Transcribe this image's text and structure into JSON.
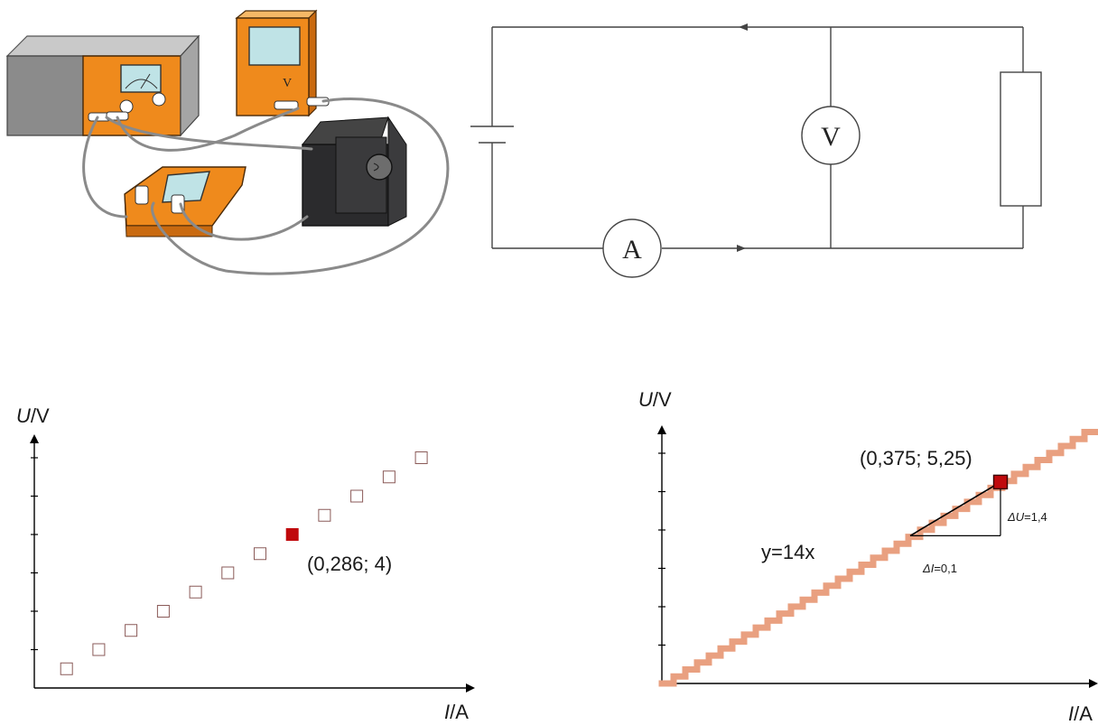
{
  "apparatus": {
    "voltmeter_letter": "V"
  },
  "circuit": {
    "voltmeter_symbol": "V",
    "ammeter_symbol": "A"
  },
  "graph_left": {
    "y_axis_var": "U",
    "y_axis_unit": "/V",
    "x_axis_var": "I",
    "x_axis_unit": "/A",
    "highlight_label": "(0,286; 4)"
  },
  "graph_right": {
    "y_axis_var": "U",
    "y_axis_unit": "/V",
    "x_axis_var": "I",
    "x_axis_unit": "/A",
    "point_label": "(0,375; 5,25)",
    "equation_label": "y=14x",
    "delta_u_symbol": "ΔU",
    "delta_u_value": "=1,4",
    "delta_i_symbol": "ΔI",
    "delta_i_value": "=0,1"
  },
  "colors": {
    "device_orange": "#ef8a1c",
    "meter_screen": "#bfe3e6",
    "highlight_red": "#c0090c",
    "trend_pink": "#e9a080",
    "marker_outline": "#8a5a58"
  },
  "chart_data": [
    {
      "type": "scatter",
      "series": [
        {
          "values": [
            [
              0.0357,
              0.5
            ],
            [
              0.0714,
              1.0
            ],
            [
              0.1071,
              1.5
            ],
            [
              0.1429,
              2.0
            ],
            [
              0.1786,
              2.5
            ],
            [
              0.2143,
              3.0
            ],
            [
              0.25,
              3.5
            ],
            [
              0.2857,
              4.0
            ],
            [
              0.3214,
              4.5
            ],
            [
              0.3571,
              5.0
            ],
            [
              0.3929,
              5.5
            ],
            [
              0.4286,
              6.0
            ]
          ]
        }
      ],
      "highlight": [
        0.286,
        4
      ],
      "xlabel": "I/A",
      "ylabel": "U/V",
      "grid": false
    },
    {
      "type": "line",
      "series": [
        {
          "equation": "y=14x",
          "slope": 14,
          "x_range": [
            0,
            0.48
          ]
        }
      ],
      "highlight": [
        0.375,
        5.25
      ],
      "slope_triangle": {
        "delta_i": 0.1,
        "delta_u": 1.4
      },
      "xlabel": "I/A",
      "ylabel": "U/V",
      "grid": false
    }
  ]
}
